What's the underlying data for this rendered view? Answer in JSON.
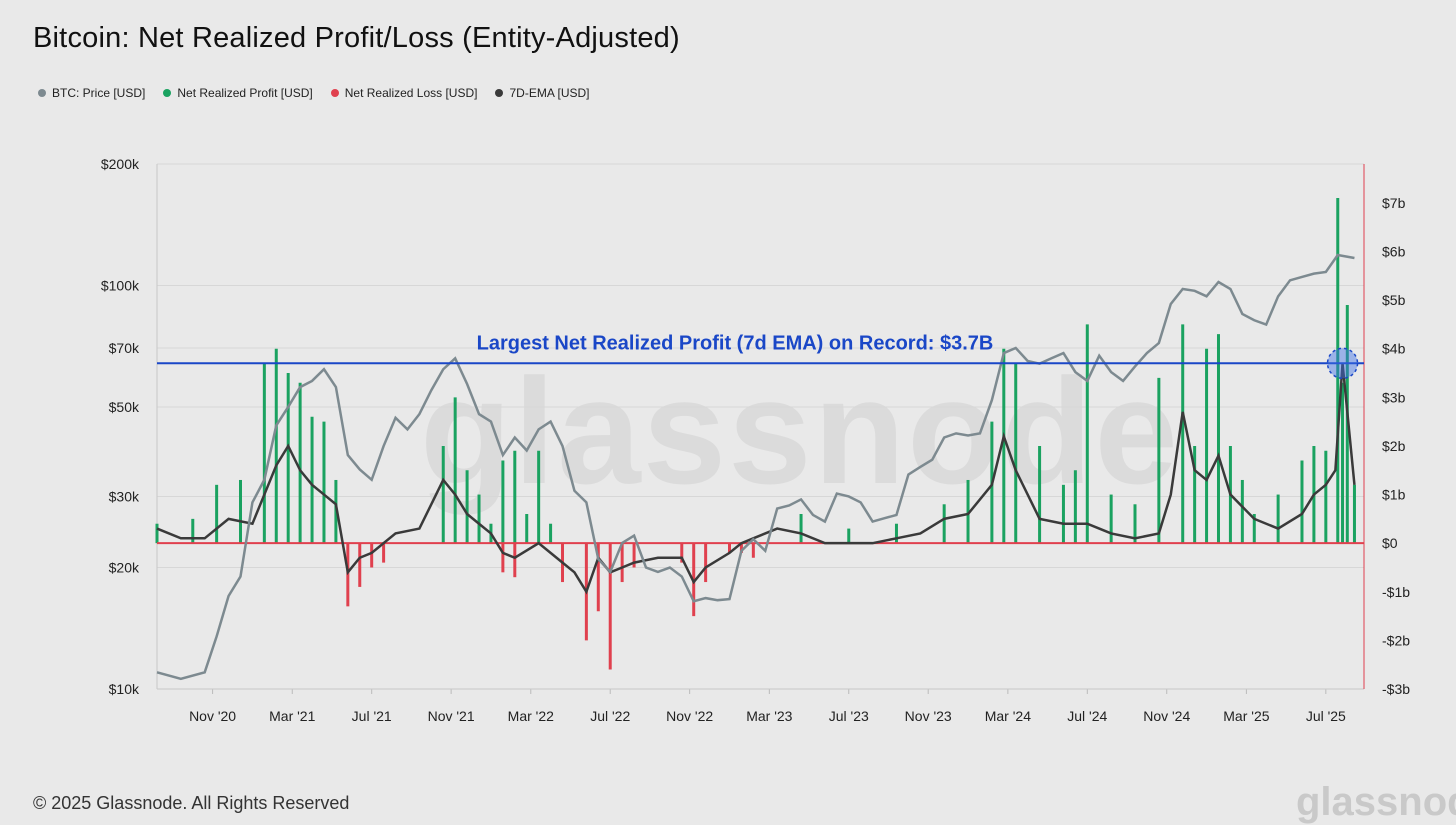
{
  "title": "Bitcoin: Net Realized Profit/Loss (Entity-Adjusted)",
  "legend": [
    {
      "label": "BTC: Price [USD]",
      "color": "#7d8a90"
    },
    {
      "label": "Net Realized Profit [USD]",
      "color": "#1aa260"
    },
    {
      "label": "Net Realized Loss [USD]",
      "color": "#e0404e"
    },
    {
      "label": "7D-EMA [USD]",
      "color": "#3a3a3a"
    }
  ],
  "watermark": "glassnode",
  "footer": {
    "copyright": "© 2025 Glassnode. All Rights Reserved",
    "logo": "glassnode"
  },
  "chart_data": {
    "type": "line",
    "title": "Bitcoin: Net Realized Profit/Loss (Entity-Adjusted)",
    "annotation": {
      "text": "Largest Net Realized Profit (7d EMA) on Record: $3.7B",
      "value_b": 3.7
    },
    "left_axis": {
      "scale": "log",
      "range": [
        10000,
        200000
      ],
      "ticks": [
        200000,
        100000,
        70000,
        50000,
        30000,
        20000,
        10000
      ],
      "tick_labels": [
        "$200k",
        "$100k",
        "$70k",
        "$50k",
        "$30k",
        "$20k",
        "$10k"
      ]
    },
    "right_axis": {
      "scale": "linear",
      "range": [
        -3,
        7.8
      ],
      "ticks": [
        7,
        6,
        5,
        4,
        3,
        2,
        1,
        0,
        -1,
        -2,
        -3
      ],
      "tick_labels": [
        "$7b",
        "$6b",
        "$5b",
        "$4b",
        "$3b",
        "$2b",
        "$1b",
        "$0",
        "-$1b",
        "-$2b",
        "-$3b"
      ]
    },
    "x_axis": {
      "range": [
        2020.6,
        2025.66
      ],
      "ticks": [
        2020.833,
        2021.167,
        2021.5,
        2021.833,
        2022.167,
        2022.5,
        2022.833,
        2023.167,
        2023.5,
        2023.833,
        2024.167,
        2024.5,
        2024.833,
        2025.167,
        2025.5
      ],
      "tick_labels": [
        "Nov '20",
        "Mar '21",
        "Jul '21",
        "Nov '21",
        "Mar '22",
        "Jul '22",
        "Nov '22",
        "Mar '23",
        "Jul '23",
        "Nov '23",
        "Mar '24",
        "Jul '24",
        "Nov '24",
        "Mar '25",
        "Jul '25"
      ]
    },
    "series": [
      {
        "name": "BTC: Price [USD]",
        "axis": "left",
        "x": [
          2020.6,
          2020.7,
          2020.8,
          2020.85,
          2020.9,
          2020.95,
          2021.0,
          2021.05,
          2021.1,
          2021.15,
          2021.2,
          2021.25,
          2021.3,
          2021.35,
          2021.4,
          2021.45,
          2021.5,
          2021.55,
          2021.6,
          2021.65,
          2021.7,
          2021.75,
          2021.8,
          2021.85,
          2021.9,
          2021.95,
          2022.0,
          2022.05,
          2022.1,
          2022.15,
          2022.2,
          2022.25,
          2022.3,
          2022.35,
          2022.4,
          2022.45,
          2022.5,
          2022.55,
          2022.6,
          2022.65,
          2022.7,
          2022.75,
          2022.8,
          2022.85,
          2022.9,
          2022.95,
          2023.0,
          2023.05,
          2023.1,
          2023.15,
          2023.2,
          2023.25,
          2023.3,
          2023.35,
          2023.4,
          2023.45,
          2023.5,
          2023.55,
          2023.6,
          2023.65,
          2023.7,
          2023.75,
          2023.8,
          2023.85,
          2023.9,
          2023.95,
          2024.0,
          2024.05,
          2024.1,
          2024.15,
          2024.2,
          2024.25,
          2024.3,
          2024.35,
          2024.4,
          2024.45,
          2024.5,
          2024.55,
          2024.6,
          2024.65,
          2024.7,
          2024.75,
          2024.8,
          2024.85,
          2024.9,
          2024.95,
          2025.0,
          2025.05,
          2025.1,
          2025.15,
          2025.2,
          2025.25,
          2025.3,
          2025.35,
          2025.4,
          2025.45,
          2025.5,
          2025.55,
          2025.62
        ],
        "values": [
          11000,
          10600,
          11000,
          13500,
          17000,
          19000,
          29000,
          33000,
          45000,
          50000,
          56000,
          58000,
          62000,
          56000,
          38000,
          35000,
          33000,
          40000,
          47000,
          44000,
          48000,
          55000,
          62000,
          66000,
          57000,
          48000,
          46000,
          38000,
          42000,
          39000,
          44000,
          46000,
          40000,
          31000,
          29000,
          21000,
          19500,
          23000,
          24000,
          20000,
          19500,
          20000,
          19000,
          16500,
          16800,
          16600,
          16700,
          22000,
          23500,
          22000,
          28000,
          28500,
          29500,
          27000,
          26000,
          30500,
          30000,
          29000,
          26000,
          26500,
          27000,
          34000,
          35500,
          37000,
          42000,
          43000,
          42500,
          43000,
          52000,
          68000,
          70000,
          65000,
          64000,
          66000,
          68000,
          61000,
          58000,
          67000,
          61000,
          58000,
          63000,
          68000,
          72000,
          90000,
          98000,
          97000,
          94000,
          102000,
          98000,
          85000,
          82000,
          80000,
          94000,
          103000,
          105000,
          107000,
          108000,
          119000,
          117000
        ]
      },
      {
        "name": "7D-EMA [USD]",
        "axis": "right",
        "x": [
          2020.6,
          2020.7,
          2020.8,
          2020.9,
          2021.0,
          2021.05,
          2021.1,
          2021.15,
          2021.2,
          2021.25,
          2021.3,
          2021.35,
          2021.4,
          2021.45,
          2021.5,
          2021.6,
          2021.7,
          2021.8,
          2021.85,
          2021.9,
          2021.95,
          2022.0,
          2022.05,
          2022.1,
          2022.2,
          2022.25,
          2022.3,
          2022.35,
          2022.4,
          2022.45,
          2022.5,
          2022.55,
          2022.6,
          2022.7,
          2022.8,
          2022.85,
          2022.9,
          2023.0,
          2023.05,
          2023.1,
          2023.2,
          2023.3,
          2023.4,
          2023.5,
          2023.6,
          2023.7,
          2023.8,
          2023.9,
          2024.0,
          2024.1,
          2024.15,
          2024.2,
          2024.25,
          2024.3,
          2024.4,
          2024.5,
          2024.55,
          2024.6,
          2024.7,
          2024.8,
          2024.85,
          2024.9,
          2024.95,
          2025.0,
          2025.05,
          2025.1,
          2025.2,
          2025.3,
          2025.4,
          2025.45,
          2025.5,
          2025.54,
          2025.57,
          2025.6,
          2025.62
        ],
        "values": [
          0.3,
          0.1,
          0.1,
          0.5,
          0.4,
          1.0,
          1.6,
          2.0,
          1.5,
          1.2,
          1.0,
          0.8,
          -0.6,
          -0.3,
          -0.2,
          0.2,
          0.3,
          1.3,
          1.0,
          0.6,
          0.4,
          0.2,
          -0.2,
          -0.3,
          0.0,
          -0.2,
          -0.4,
          -0.6,
          -1.0,
          -0.3,
          -0.6,
          -0.5,
          -0.4,
          -0.3,
          -0.3,
          -0.8,
          -0.5,
          -0.2,
          0.0,
          0.1,
          0.3,
          0.2,
          0.0,
          0.0,
          0.0,
          0.1,
          0.2,
          0.5,
          0.6,
          1.2,
          2.2,
          1.5,
          1.0,
          0.5,
          0.4,
          0.4,
          0.3,
          0.2,
          0.1,
          0.2,
          1.0,
          2.7,
          1.5,
          1.3,
          1.8,
          1.0,
          0.5,
          0.3,
          0.6,
          1.0,
          1.2,
          1.5,
          3.7,
          2.2,
          1.2
        ]
      },
      {
        "name": "Net Realized Profit [USD]",
        "axis": "right",
        "x": [
          2020.6,
          2020.75,
          2020.85,
          2020.95,
          2021.05,
          2021.1,
          2021.15,
          2021.2,
          2021.25,
          2021.3,
          2021.35,
          2021.8,
          2021.85,
          2021.9,
          2021.95,
          2022.0,
          2022.05,
          2022.1,
          2022.15,
          2022.2,
          2022.25,
          2023.3,
          2023.5,
          2023.7,
          2023.9,
          2024.0,
          2024.1,
          2024.15,
          2024.2,
          2024.3,
          2024.4,
          2024.45,
          2024.5,
          2024.6,
          2024.7,
          2024.8,
          2024.9,
          2024.95,
          2025.0,
          2025.05,
          2025.1,
          2025.15,
          2025.2,
          2025.3,
          2025.4,
          2025.45,
          2025.5,
          2025.55,
          2025.57,
          2025.59,
          2025.62
        ],
        "values": [
          0.4,
          0.5,
          1.2,
          1.3,
          3.7,
          4.0,
          3.5,
          3.3,
          2.6,
          2.5,
          1.3,
          2.0,
          3.0,
          1.5,
          1.0,
          0.4,
          1.7,
          1.9,
          0.6,
          1.9,
          0.4,
          0.6,
          0.3,
          0.4,
          0.8,
          1.3,
          2.5,
          4.0,
          3.7,
          2.0,
          1.2,
          1.5,
          4.5,
          1.0,
          0.8,
          3.4,
          4.5,
          2.0,
          4.0,
          4.3,
          2.0,
          1.3,
          0.6,
          1.0,
          1.7,
          2.0,
          1.9,
          7.1,
          3.3,
          4.9,
          1.2
        ]
      },
      {
        "name": "Net Realized Loss [USD]",
        "axis": "right",
        "x": [
          2021.4,
          2021.45,
          2021.5,
          2021.55,
          2022.05,
          2022.1,
          2022.3,
          2022.4,
          2022.45,
          2022.5,
          2022.55,
          2022.6,
          2022.8,
          2022.85,
          2022.9,
          2023.0,
          2023.05,
          2023.1
        ],
        "values": [
          -1.3,
          -0.9,
          -0.5,
          -0.4,
          -0.6,
          -0.7,
          -0.8,
          -2.0,
          -1.4,
          -2.6,
          -0.8,
          -0.5,
          -0.4,
          -1.5,
          -0.8,
          -0.2,
          -0.2,
          -0.3
        ]
      }
    ]
  }
}
